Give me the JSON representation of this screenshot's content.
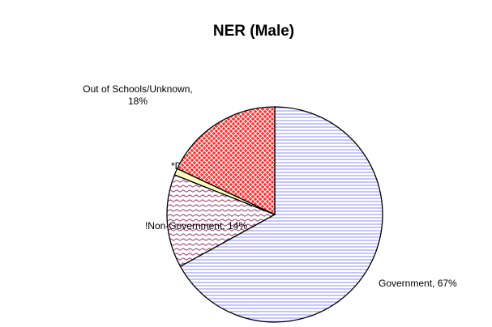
{
  "chart_data": {
    "type": "pie",
    "title": "NER (Male)",
    "values": [
      67,
      14,
      1,
      18
    ],
    "value_labels": [
      "Government, 67%",
      "!Non-Government, 14%",
      "*Deeni Madaris, 1%",
      "Out of Schools/Unknown,\n18%"
    ],
    "colors": [
      "#8c8cf5",
      "#a0507a",
      "#ffffc0",
      "#ff3030"
    ]
  }
}
